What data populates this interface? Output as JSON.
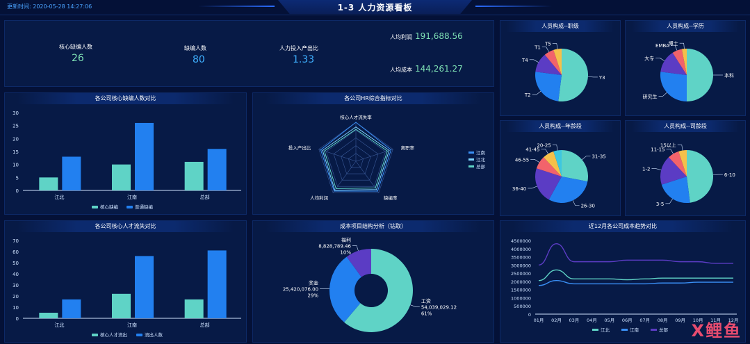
{
  "header": {
    "update_time": "更新时间: 2020-05-28 14:27:06",
    "title": "1-3 人力资源看板"
  },
  "kpis": [
    {
      "label": "核心缺编人数",
      "value": "26",
      "color": "#7ee0b4"
    },
    {
      "label": "缺编人数",
      "value": "80",
      "color": "#3fb0ff"
    },
    {
      "label": "人力投入产出比",
      "value": "1.33",
      "color": "#3fb0ff"
    }
  ],
  "kpis_right": [
    {
      "label": "人均利润",
      "value": "191,688.56",
      "color": "#7ee0b4"
    },
    {
      "label": "人均成本",
      "value": "144,261.27",
      "color": "#7ee0b4"
    }
  ],
  "colors": {
    "teal": "#5fd3c6",
    "blue": "#2280f0",
    "purple": "#5b3cc4",
    "red": "#f2636b",
    "yellow": "#f5c04a",
    "line_green": "#5fd3c6",
    "line_blue": "#3a8ff5",
    "line_purple": "#5b3cc4"
  },
  "watermark": "X鲤鱼",
  "chart_data": [
    {
      "id": "core-vacancy",
      "type": "bar",
      "title": "各公司核心缺编人数对比",
      "categories": [
        "江北",
        "江南",
        "总部"
      ],
      "series": [
        {
          "name": "核心缺编",
          "values": [
            5,
            10,
            11
          ]
        },
        {
          "name": "普通缺编",
          "values": [
            13,
            26,
            16
          ]
        }
      ],
      "ylim": [
        0,
        30
      ],
      "yticks": [
        "0",
        "5",
        "10",
        "15",
        "20",
        "25",
        "30"
      ]
    },
    {
      "id": "core-loss",
      "type": "bar",
      "title": "各公司核心人才流失对比",
      "categories": [
        "江北",
        "江南",
        "总部"
      ],
      "series": [
        {
          "name": "核心人才流出",
          "values": [
            5,
            22,
            17
          ]
        },
        {
          "name": "流出人数",
          "values": [
            17,
            56,
            61
          ]
        }
      ],
      "ylim": [
        0,
        70
      ],
      "yticks": [
        "0",
        "10",
        "20",
        "30",
        "40",
        "50",
        "60",
        "70"
      ]
    },
    {
      "id": "hr-radar",
      "type": "radar",
      "title": "各公司HR综合指标对比",
      "axes": [
        "核心人才流失率",
        "离职率",
        "缺编率",
        "人均利润",
        "投入产出比"
      ],
      "series": [
        {
          "name": "江南",
          "values": [
            1.0,
            0.95,
            0.95,
            0.95,
            0.95
          ]
        },
        {
          "name": "江北",
          "values": [
            0.88,
            0.9,
            0.9,
            0.92,
            0.9
          ]
        },
        {
          "name": "总部",
          "values": [
            0.82,
            0.85,
            0.85,
            0.87,
            0.85
          ]
        }
      ]
    },
    {
      "id": "cost-structure",
      "type": "pie",
      "title": "成本项目结构分析（钻取）",
      "slices": [
        {
          "label": "工资",
          "value": 54039029.12,
          "value_text": "54,039,029.12",
          "pct": "61%"
        },
        {
          "label": "奖金",
          "value": 25420076.0,
          "value_text": "25,420,076.00",
          "pct": "29%"
        },
        {
          "label": "福利",
          "value": 8828789.46,
          "value_text": "8,828,789.46",
          "pct": "10%"
        }
      ]
    },
    {
      "id": "cost-trend",
      "type": "line",
      "title": "近12月各公司成本趋势对比",
      "categories": [
        "01月",
        "02月",
        "03月",
        "04月",
        "05月",
        "06月",
        "07月",
        "08月",
        "09月",
        "10月",
        "11月",
        "12月"
      ],
      "series": [
        {
          "name": "江北",
          "values": [
            2050000,
            2700000,
            2150000,
            2150000,
            2150000,
            2100000,
            2150000,
            2200000,
            2200000,
            2200000,
            2200000,
            2200000
          ]
        },
        {
          "name": "江南",
          "values": [
            1750000,
            2050000,
            1850000,
            1850000,
            1850000,
            1850000,
            1850000,
            1900000,
            1900000,
            1950000,
            1950000,
            1950000
          ]
        },
        {
          "name": "总部",
          "values": [
            3000000,
            4300000,
            3200000,
            3200000,
            3200000,
            3300000,
            3300000,
            3300000,
            3200000,
            3200000,
            3100000,
            3100000
          ]
        }
      ],
      "ylim": [
        0,
        4500000
      ],
      "yticks": [
        "0",
        "500000",
        "1000000",
        "1500000",
        "2000000",
        "2500000",
        "3000000",
        "3500000",
        "4000000",
        "4500000"
      ]
    },
    {
      "id": "comp-rank",
      "type": "pie",
      "title": "人员构成--职级",
      "slices": [
        {
          "label": "Y3",
          "value": 52
        },
        {
          "label": "T2",
          "value": 25
        },
        {
          "label": "T4",
          "value": 12
        },
        {
          "label": "T1",
          "value": 6
        },
        {
          "label": "T5",
          "value": 5
        }
      ]
    },
    {
      "id": "comp-edu",
      "type": "pie",
      "title": "人员构成--学历",
      "slices": [
        {
          "label": "本科",
          "value": 50
        },
        {
          "label": "研究生",
          "value": 27
        },
        {
          "label": "大专",
          "value": 14
        },
        {
          "label": "EMBA",
          "value": 6
        },
        {
          "label": "博士",
          "value": 3
        }
      ]
    },
    {
      "id": "comp-age",
      "type": "pie",
      "title": "人员构成--年龄段",
      "slices": [
        {
          "label": "31-35",
          "value": 28
        },
        {
          "label": "26-30",
          "value": 30
        },
        {
          "label": "36-40",
          "value": 22
        },
        {
          "label": "46-55",
          "value": 8
        },
        {
          "label": "41-45",
          "value": 7
        },
        {
          "label": "20-25",
          "value": 5
        }
      ]
    },
    {
      "id": "comp-tenure",
      "type": "pie",
      "title": "人员构成--司龄段",
      "slices": [
        {
          "label": "6-10",
          "value": 48
        },
        {
          "label": "3-5",
          "value": 22
        },
        {
          "label": "1-2",
          "value": 18
        },
        {
          "label": "11-15",
          "value": 7
        },
        {
          "label": "15以上",
          "value": 5
        }
      ]
    }
  ]
}
